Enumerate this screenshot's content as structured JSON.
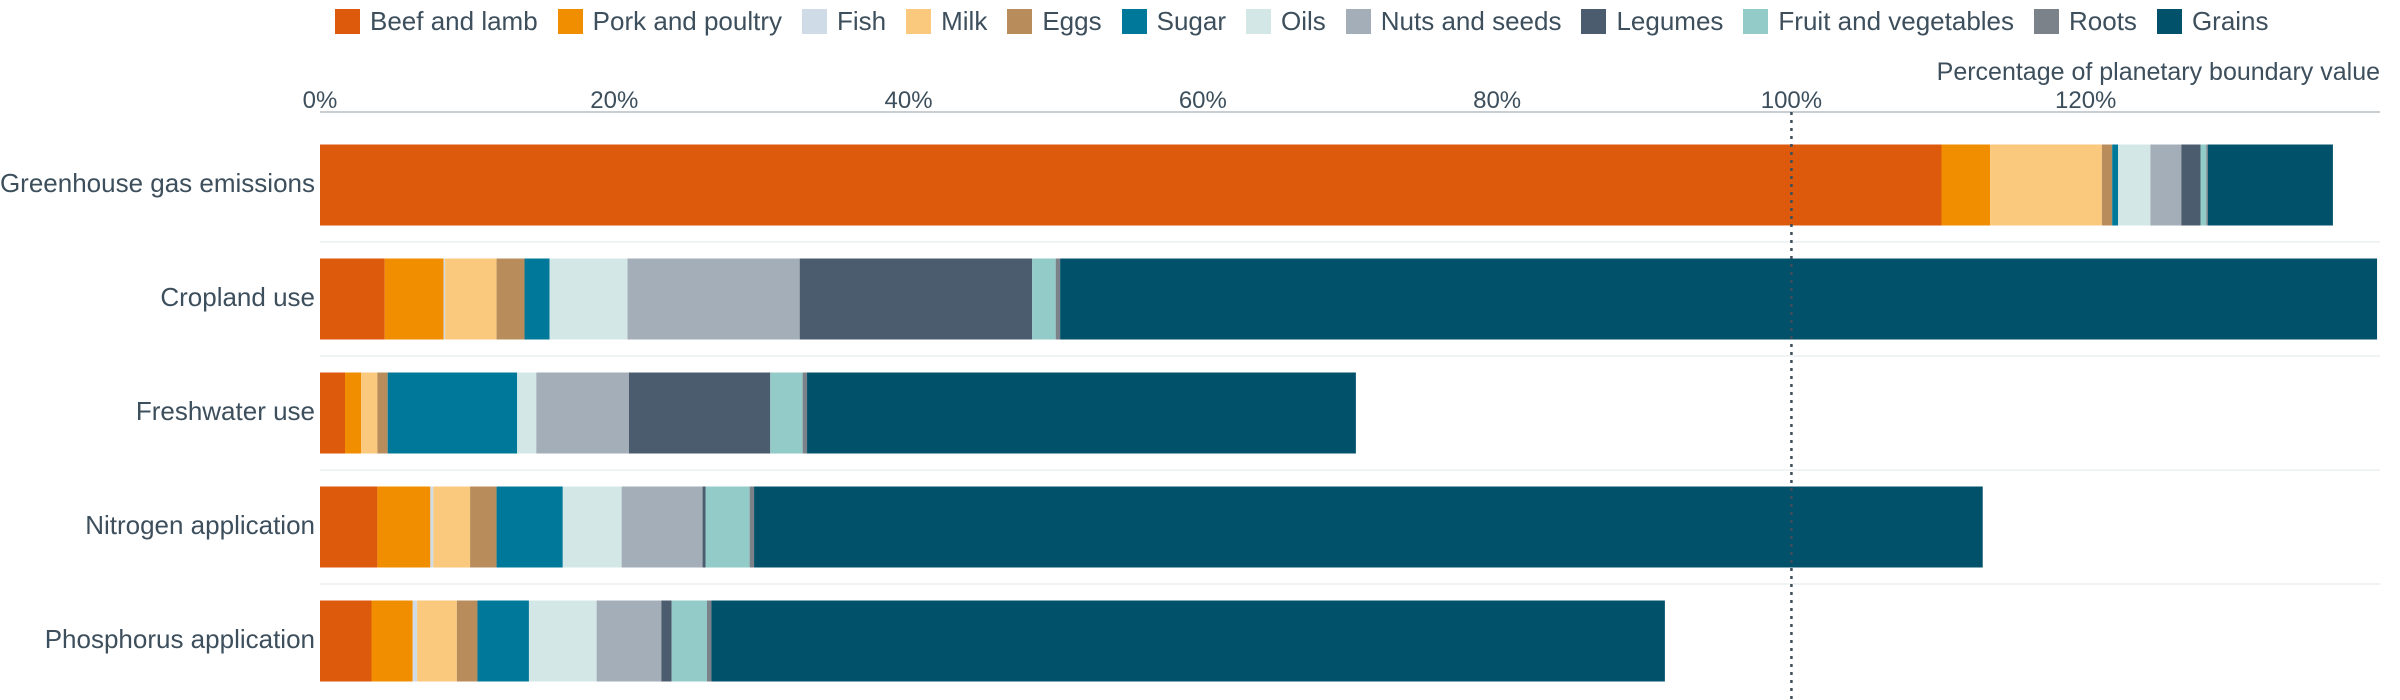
{
  "chart_data": {
    "type": "bar",
    "orientation": "horizontal",
    "stacked": true,
    "xlabel": "Percentage of planetary boundary value",
    "ylabel": "",
    "xlim": [
      0,
      140
    ],
    "x_ticks": [
      0,
      20,
      40,
      60,
      80,
      100,
      120
    ],
    "x_tick_labels": [
      "0%",
      "20%",
      "40%",
      "60%",
      "80%",
      "100%",
      "120%"
    ],
    "reference_line": {
      "value": 100,
      "style": "dotted"
    },
    "legend_position": "top",
    "grid": "horizontal row lines",
    "categories": [
      "Greenhouse gas emissions",
      "Cropland use",
      "Freshwater use",
      "Nitrogen application",
      "Phosphorus application"
    ],
    "series": [
      {
        "name": "Beef and lamb",
        "color": "#dd5a0c",
        "values": [
          110.2,
          4.4,
          1.7,
          3.9,
          3.5
        ]
      },
      {
        "name": "Pork and poultry",
        "color": "#f18e00",
        "values": [
          3.3,
          4.0,
          1.1,
          3.6,
          2.8
        ]
      },
      {
        "name": "Fish",
        "color": "#cfdbe6",
        "values": [
          0.0,
          0.1,
          0.0,
          0.2,
          0.3
        ]
      },
      {
        "name": "Milk",
        "color": "#fbc97d",
        "values": [
          7.6,
          3.5,
          1.1,
          2.5,
          2.7
        ]
      },
      {
        "name": "Eggs",
        "color": "#b88d5b",
        "values": [
          0.7,
          1.9,
          0.7,
          1.8,
          1.4
        ]
      },
      {
        "name": "Sugar",
        "color": "#00789a",
        "values": [
          0.4,
          1.7,
          8.8,
          4.5,
          3.5
        ]
      },
      {
        "name": "Oils",
        "color": "#d3e7e6",
        "values": [
          2.2,
          5.3,
          1.3,
          4.0,
          4.6
        ]
      },
      {
        "name": "Nuts and seeds",
        "color": "#a3aeb9",
        "values": [
          2.1,
          11.7,
          6.3,
          5.5,
          4.4
        ]
      },
      {
        "name": "Legumes",
        "color": "#4a5c6d",
        "values": [
          1.3,
          15.8,
          9.6,
          0.2,
          0.7
        ]
      },
      {
        "name": "Fruit and vegetables",
        "color": "#92cbc8",
        "values": [
          0.4,
          1.6,
          2.2,
          3.0,
          2.4
        ]
      },
      {
        "name": "Roots",
        "color": "#7b8289",
        "values": [
          0.1,
          0.3,
          0.3,
          0.3,
          0.3
        ]
      },
      {
        "name": "Grains",
        "color": "#02516b",
        "values": [
          8.5,
          89.5,
          37.3,
          83.5,
          64.8
        ]
      }
    ]
  }
}
